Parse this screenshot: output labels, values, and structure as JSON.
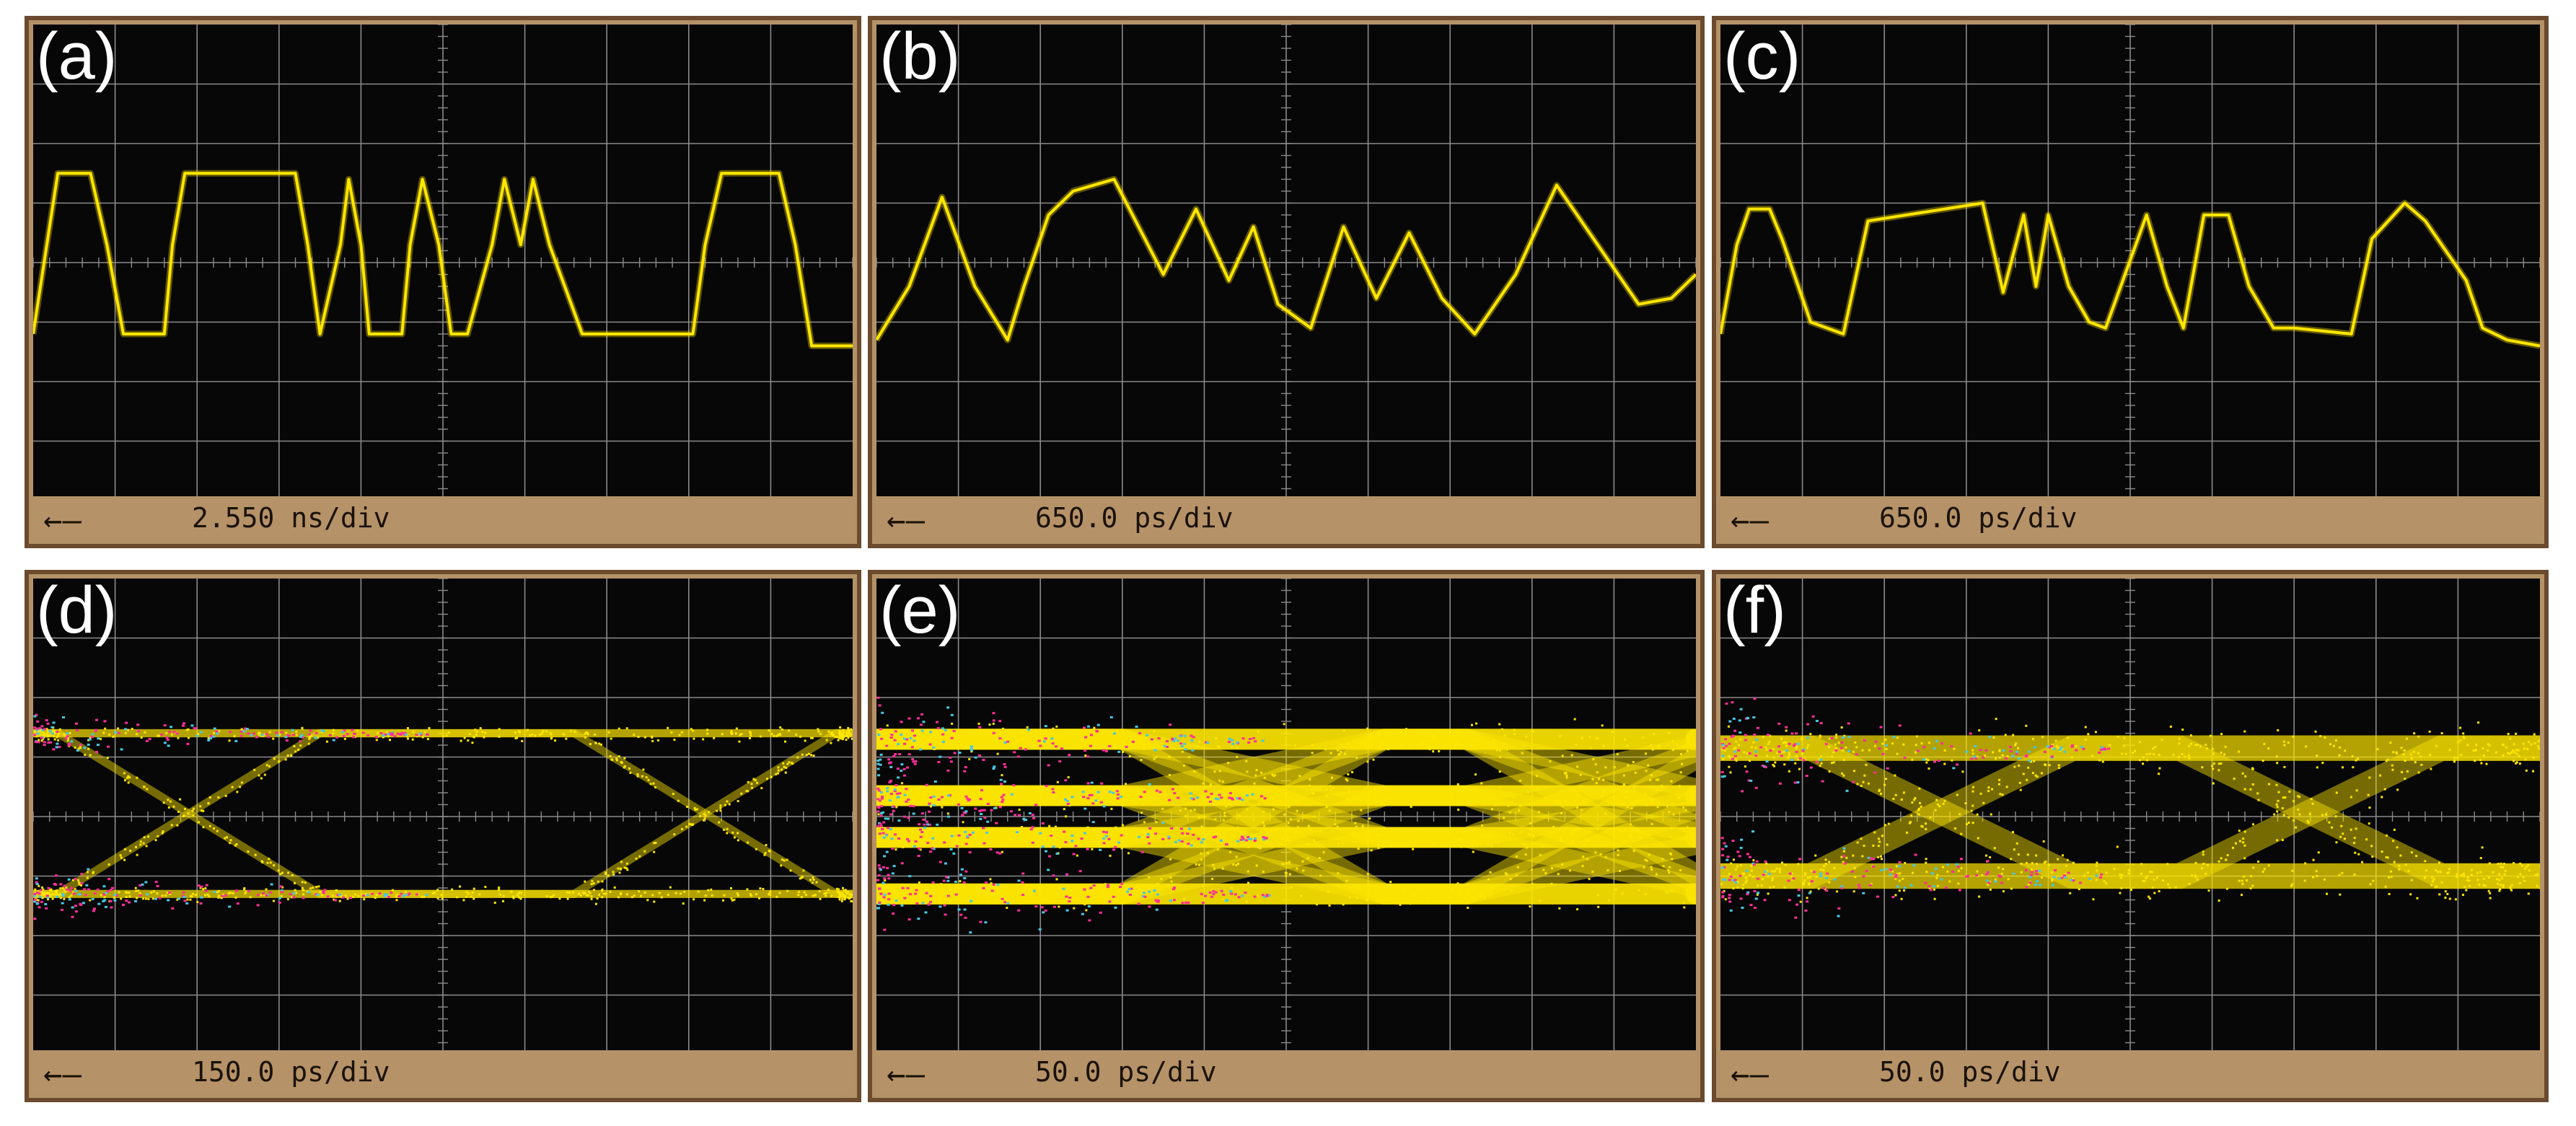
{
  "colors": {
    "trace": "#ffe600",
    "magenta": "#ff2d9b",
    "cyan": "#46c8e6",
    "grid": "#8a8a8a",
    "screen": "#070707",
    "bezel": "#b49268",
    "border": "#6b4a2e"
  },
  "chart_data": [
    {
      "type": "line",
      "panel_label": "(a)",
      "timebase": "2.550 ns/div",
      "ground_marker": "←—",
      "units_per_div_x": 1,
      "xlim": [
        0,
        10
      ],
      "ylim": [
        -4,
        4
      ],
      "grid": true,
      "series": [
        {
          "x": [
            0,
            0.2,
            0.3,
            0.7,
            0.9,
            1.1,
            1.6,
            1.7,
            1.85,
            2.0,
            3.2,
            3.35,
            3.5,
            3.75,
            3.85,
            4.0,
            4.1,
            4.5,
            4.6,
            4.75,
            4.95,
            5.1,
            5.3,
            5.6,
            5.75,
            5.95,
            6.1,
            6.3,
            6.7,
            6.85,
            7.0,
            8.05,
            8.2,
            8.4,
            9.1,
            9.3,
            9.5,
            10
          ],
          "y": [
            -1.2,
            0.6,
            1.5,
            1.5,
            0.3,
            -1.2,
            -1.2,
            0.3,
            1.5,
            1.5,
            1.5,
            0.3,
            -1.2,
            0.3,
            1.4,
            0.3,
            -1.2,
            -1.2,
            0.3,
            1.4,
            0.3,
            -1.2,
            -1.2,
            0.3,
            1.4,
            0.3,
            1.4,
            0.3,
            -1.2,
            -1.2,
            -1.2,
            -1.2,
            0.3,
            1.5,
            1.5,
            0.3,
            -1.4,
            -1.4
          ]
        }
      ]
    },
    {
      "type": "line",
      "panel_label": "(b)",
      "timebase": "650.0 ps/div",
      "ground_marker": "←—",
      "units_per_div_x": 1,
      "xlim": [
        0,
        10
      ],
      "ylim": [
        -4,
        4
      ],
      "grid": true,
      "series": [
        {
          "x": [
            0,
            0.4,
            0.8,
            1.2,
            1.6,
            1.8,
            2.1,
            2.4,
            2.9,
            3.5,
            3.9,
            4.3,
            4.6,
            4.9,
            5.3,
            5.7,
            6.1,
            6.5,
            6.9,
            7.3,
            7.8,
            8.3,
            8.8,
            9.3,
            9.7,
            10
          ],
          "y": [
            -1.3,
            -0.4,
            1.1,
            -0.4,
            -1.3,
            -0.4,
            0.8,
            1.2,
            1.4,
            -0.2,
            0.9,
            -0.3,
            0.6,
            -0.7,
            -1.1,
            0.6,
            -0.6,
            0.5,
            -0.6,
            -1.2,
            -0.2,
            1.3,
            0.3,
            -0.7,
            -0.6,
            -0.2
          ]
        }
      ]
    },
    {
      "type": "line",
      "panel_label": "(c)",
      "timebase": "650.0 ps/div",
      "ground_marker": "←—",
      "units_per_div_x": 1,
      "xlim": [
        0,
        10
      ],
      "ylim": [
        -4,
        4
      ],
      "grid": true,
      "series": [
        {
          "x": [
            0,
            0.2,
            0.35,
            0.6,
            0.75,
            1.1,
            1.5,
            1.8,
            3.2,
            3.45,
            3.7,
            3.85,
            4.0,
            4.25,
            4.5,
            4.7,
            5.2,
            5.45,
            5.65,
            5.9,
            6.2,
            6.45,
            6.75,
            7.0,
            7.7,
            7.95,
            8.35,
            8.6,
            9.1,
            9.3,
            9.6,
            10
          ],
          "y": [
            -1.2,
            0.3,
            0.9,
            0.9,
            0.4,
            -1.0,
            -1.2,
            0.7,
            1.0,
            -0.5,
            0.8,
            -0.4,
            0.8,
            -0.4,
            -1.0,
            -1.1,
            0.8,
            -0.4,
            -1.1,
            0.8,
            0.8,
            -0.4,
            -1.1,
            -1.1,
            -1.2,
            0.4,
            1.0,
            0.7,
            -0.3,
            -1.1,
            -1.3,
            -1.4
          ]
        }
      ]
    },
    {
      "type": "eye",
      "panel_label": "(d)",
      "timebase": "150.0 ps/div",
      "ground_marker": "←—",
      "units_per_div_x": 1,
      "xlim": [
        0,
        10
      ],
      "ylim": [
        -4,
        4
      ],
      "grid": true,
      "levels": [
        1.4,
        -1.3
      ],
      "crossings": [
        1.9,
        8.2
      ],
      "noise": 0.07
    },
    {
      "type": "eye",
      "panel_label": "(e)",
      "timebase": "50.0 ps/div",
      "ground_marker": "←—",
      "units_per_div_x": 1,
      "xlim": [
        0,
        10
      ],
      "ylim": [
        -4,
        4
      ],
      "grid": true,
      "levels": [
        1.3,
        0.35,
        -0.35,
        -1.3
      ],
      "crossings": [
        4.6,
        8.8
      ],
      "noise": 0.18
    },
    {
      "type": "eye",
      "panel_label": "(f)",
      "timebase": "50.0 ps/div",
      "ground_marker": "←—",
      "units_per_div_x": 1,
      "xlim": [
        0,
        10
      ],
      "ylim": [
        -4,
        4
      ],
      "grid": true,
      "levels": [
        1.15,
        -1.0
      ],
      "crossings": [
        2.7,
        7.2
      ],
      "noise": 0.22
    }
  ]
}
